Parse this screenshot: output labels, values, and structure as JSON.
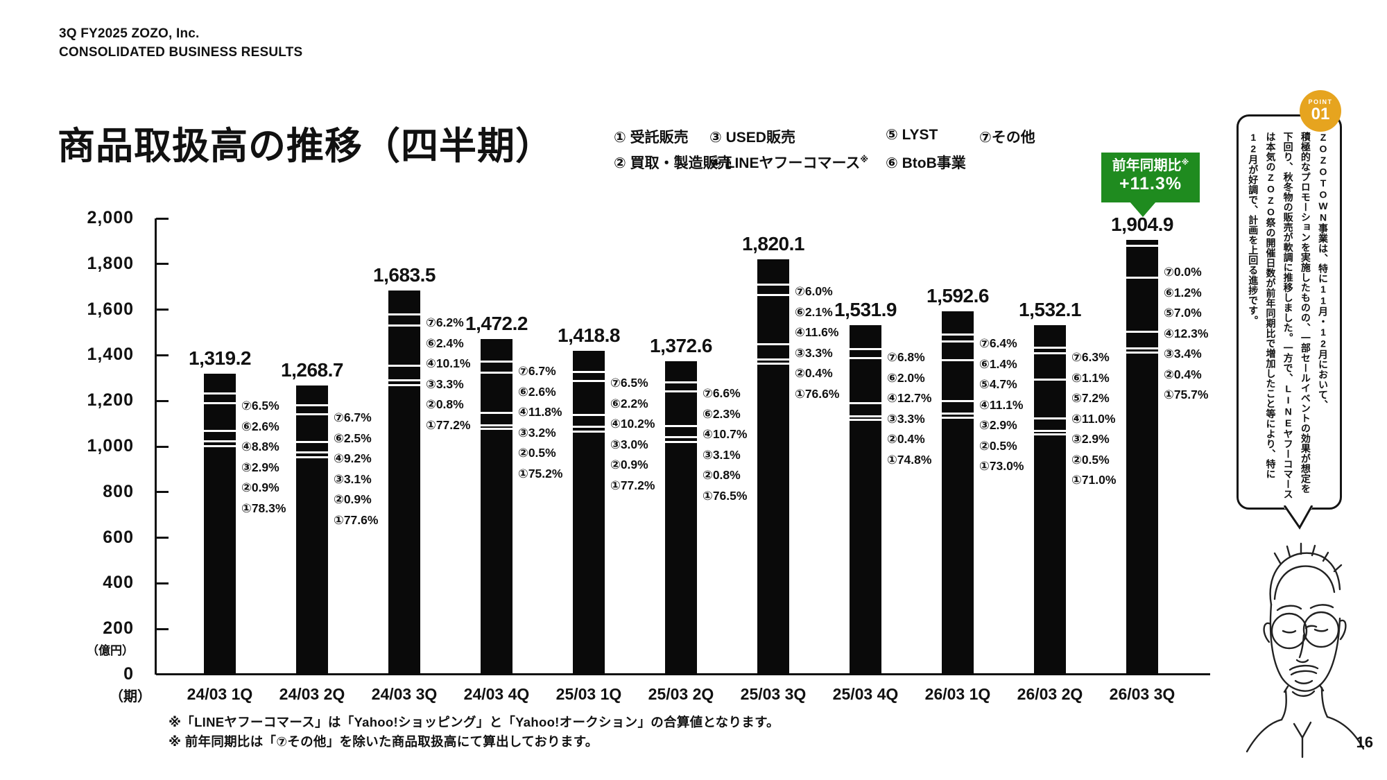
{
  "header": {
    "line1": "3Q FY2025 ZOZO, Inc.",
    "line2": "CONSOLIDATED BUSINESS RESULTS"
  },
  "title": "商品取扱高の推移（四半期）",
  "legend": {
    "items": [
      {
        "text": "① 受託販売",
        "sup": ""
      },
      {
        "text": "② 買取・製造販売",
        "sup": ""
      },
      {
        "text": "③ USED販売",
        "sup": ""
      },
      {
        "text": "④ LINEヤフーコマース",
        "sup": "※"
      },
      {
        "text": "⑤ LYST",
        "sup": ""
      },
      {
        "text": "⑥ BtoB事業",
        "sup": ""
      },
      {
        "text": "⑦その他",
        "sup": ""
      }
    ]
  },
  "yoy_badge": {
    "label": "前年同期比",
    "sup": "※",
    "value": "+11.3%",
    "color": "#1f8b1f"
  },
  "chart_data": {
    "type": "bar",
    "stacked": true,
    "title": "商品取扱高の推移（四半期）",
    "unit_label": "（億円）",
    "axis_label": "（期）",
    "ylim": [
      0,
      2000
    ],
    "ytick_interval": 200,
    "yticks": [
      "2,000",
      "1,800",
      "1,600",
      "1,400",
      "1,200",
      "1,000",
      "800",
      "600",
      "400",
      "200",
      "0"
    ],
    "categories": [
      "24/03 1Q",
      "24/03 2Q",
      "24/03 3Q",
      "24/03 4Q",
      "25/03 1Q",
      "25/03 2Q",
      "25/03 3Q",
      "25/03 4Q",
      "26/03 1Q",
      "26/03 2Q",
      "26/03 3Q"
    ],
    "bar_color": "#0a0a0a",
    "bars": [
      {
        "category": "24/03 1Q",
        "total_label": "1,319.2",
        "total": 1319.2,
        "segments": [
          {
            "num": "⑦",
            "pct": "6.5%",
            "value": 6.5
          },
          {
            "num": "⑥",
            "pct": "2.6%",
            "value": 2.6
          },
          {
            "num": "④",
            "pct": "8.8%",
            "value": 8.8
          },
          {
            "num": "③",
            "pct": "2.9%",
            "value": 2.9
          },
          {
            "num": "②",
            "pct": "0.9%",
            "value": 0.9
          },
          {
            "num": "①",
            "pct": "78.3%",
            "value": 78.3
          }
        ]
      },
      {
        "category": "24/03 2Q",
        "total_label": "1,268.7",
        "total": 1268.7,
        "segments": [
          {
            "num": "⑦",
            "pct": "6.7%",
            "value": 6.7
          },
          {
            "num": "⑥",
            "pct": "2.5%",
            "value": 2.5
          },
          {
            "num": "④",
            "pct": "9.2%",
            "value": 9.2
          },
          {
            "num": "③",
            "pct": "3.1%",
            "value": 3.1
          },
          {
            "num": "②",
            "pct": "0.9%",
            "value": 0.9
          },
          {
            "num": "①",
            "pct": "77.6%",
            "value": 77.6
          }
        ]
      },
      {
        "category": "24/03 3Q",
        "total_label": "1,683.5",
        "total": 1683.5,
        "segments": [
          {
            "num": "⑦",
            "pct": "6.2%",
            "value": 6.2
          },
          {
            "num": "⑥",
            "pct": "2.4%",
            "value": 2.4
          },
          {
            "num": "④",
            "pct": "10.1%",
            "value": 10.1
          },
          {
            "num": "③",
            "pct": "3.3%",
            "value": 3.3
          },
          {
            "num": "②",
            "pct": "0.8%",
            "value": 0.8
          },
          {
            "num": "①",
            "pct": "77.2%",
            "value": 77.2
          }
        ]
      },
      {
        "category": "24/03 4Q",
        "total_label": "1,472.2",
        "total": 1472.2,
        "segments": [
          {
            "num": "⑦",
            "pct": "6.7%",
            "value": 6.7
          },
          {
            "num": "⑥",
            "pct": "2.6%",
            "value": 2.6
          },
          {
            "num": "④",
            "pct": "11.8%",
            "value": 11.8
          },
          {
            "num": "③",
            "pct": "3.2%",
            "value": 3.2
          },
          {
            "num": "②",
            "pct": "0.5%",
            "value": 0.5
          },
          {
            "num": "①",
            "pct": "75.2%",
            "value": 75.2
          }
        ]
      },
      {
        "category": "25/03 1Q",
        "total_label": "1,418.8",
        "total": 1418.8,
        "segments": [
          {
            "num": "⑦",
            "pct": "6.5%",
            "value": 6.5
          },
          {
            "num": "⑥",
            "pct": "2.2%",
            "value": 2.2
          },
          {
            "num": "④",
            "pct": "10.2%",
            "value": 10.2
          },
          {
            "num": "③",
            "pct": "3.0%",
            "value": 3.0
          },
          {
            "num": "②",
            "pct": "0.9%",
            "value": 0.9
          },
          {
            "num": "①",
            "pct": "77.2%",
            "value": 77.2
          }
        ]
      },
      {
        "category": "25/03 2Q",
        "total_label": "1,372.6",
        "total": 1372.6,
        "segments": [
          {
            "num": "⑦",
            "pct": "6.6%",
            "value": 6.6
          },
          {
            "num": "⑥",
            "pct": "2.3%",
            "value": 2.3
          },
          {
            "num": "④",
            "pct": "10.7%",
            "value": 10.7
          },
          {
            "num": "③",
            "pct": "3.1%",
            "value": 3.1
          },
          {
            "num": "②",
            "pct": "0.8%",
            "value": 0.8
          },
          {
            "num": "①",
            "pct": "76.5%",
            "value": 76.5
          }
        ]
      },
      {
        "category": "25/03 3Q",
        "total_label": "1,820.1",
        "total": 1820.1,
        "segments": [
          {
            "num": "⑦",
            "pct": "6.0%",
            "value": 6.0
          },
          {
            "num": "⑥",
            "pct": "2.1%",
            "value": 2.1
          },
          {
            "num": "④",
            "pct": "11.6%",
            "value": 11.6
          },
          {
            "num": "③",
            "pct": "3.3%",
            "value": 3.3
          },
          {
            "num": "②",
            "pct": "0.4%",
            "value": 0.4
          },
          {
            "num": "①",
            "pct": "76.6%",
            "value": 76.6
          }
        ]
      },
      {
        "category": "25/03 4Q",
        "total_label": "1,531.9",
        "total": 1531.9,
        "segments": [
          {
            "num": "⑦",
            "pct": "6.8%",
            "value": 6.8
          },
          {
            "num": "⑥",
            "pct": "2.0%",
            "value": 2.0
          },
          {
            "num": "④",
            "pct": "12.7%",
            "value": 12.7
          },
          {
            "num": "③",
            "pct": "3.3%",
            "value": 3.3
          },
          {
            "num": "②",
            "pct": "0.4%",
            "value": 0.4
          },
          {
            "num": "①",
            "pct": "74.8%",
            "value": 74.8
          }
        ]
      },
      {
        "category": "26/03 1Q",
        "total_label": "1,592.6",
        "total": 1592.6,
        "segments": [
          {
            "num": "⑦",
            "pct": "6.4%",
            "value": 6.4
          },
          {
            "num": "⑥",
            "pct": "1.4%",
            "value": 1.4
          },
          {
            "num": "⑤",
            "pct": "4.7%",
            "value": 4.7
          },
          {
            "num": "④",
            "pct": "11.1%",
            "value": 11.1
          },
          {
            "num": "③",
            "pct": "2.9%",
            "value": 2.9
          },
          {
            "num": "②",
            "pct": "0.5%",
            "value": 0.5
          },
          {
            "num": "①",
            "pct": "73.0%",
            "value": 73.0
          }
        ]
      },
      {
        "category": "26/03 2Q",
        "total_label": "1,532.1",
        "total": 1532.1,
        "segments": [
          {
            "num": "⑦",
            "pct": "6.3%",
            "value": 6.3
          },
          {
            "num": "⑥",
            "pct": "1.1%",
            "value": 1.1
          },
          {
            "num": "⑤",
            "pct": "7.2%",
            "value": 7.2
          },
          {
            "num": "④",
            "pct": "11.0%",
            "value": 11.0
          },
          {
            "num": "③",
            "pct": "2.9%",
            "value": 2.9
          },
          {
            "num": "②",
            "pct": "0.5%",
            "value": 0.5
          },
          {
            "num": "①",
            "pct": "71.0%",
            "value": 71.0
          }
        ]
      },
      {
        "category": "26/03 3Q",
        "total_label": "1,904.9",
        "total": 1904.9,
        "segments": [
          {
            "num": "⑦",
            "pct": "0.0%",
            "value": 0.0
          },
          {
            "num": "⑥",
            "pct": "1.2%",
            "value": 1.2
          },
          {
            "num": "⑤",
            "pct": "7.0%",
            "value": 7.0
          },
          {
            "num": "④",
            "pct": "12.3%",
            "value": 12.3
          },
          {
            "num": "③",
            "pct": "3.4%",
            "value": 3.4
          },
          {
            "num": "②",
            "pct": "0.4%",
            "value": 0.4
          },
          {
            "num": "①",
            "pct": "75.7%",
            "value": 75.7
          }
        ]
      }
    ]
  },
  "notes": [
    "※「LINEヤフーコマース」は「Yahoo!ショッピング」と「Yahoo!オークション」の合算値となります。",
    "※ 前年同期比は「⑦その他」を除いた商品取扱高にて算出しております。"
  ],
  "point_panel": {
    "badge_label": "POINT",
    "badge_number": "01",
    "badge_color": "#e6a41f",
    "text": "ZOZOTOWN事業は、特に11月・12月において、\n積極的なプロモーションを実施したものの、一部セールイベントの効果が想定を\n下回り、秋冬物の販売が軟調に推移しました。一方で、LINEヤフーコマース\nは本気のZOZO祭の開催日数が前年同期比で増加したこと等により、特に\n12月が好調で、計画を上回る進捗です。"
  },
  "page_number": "16"
}
